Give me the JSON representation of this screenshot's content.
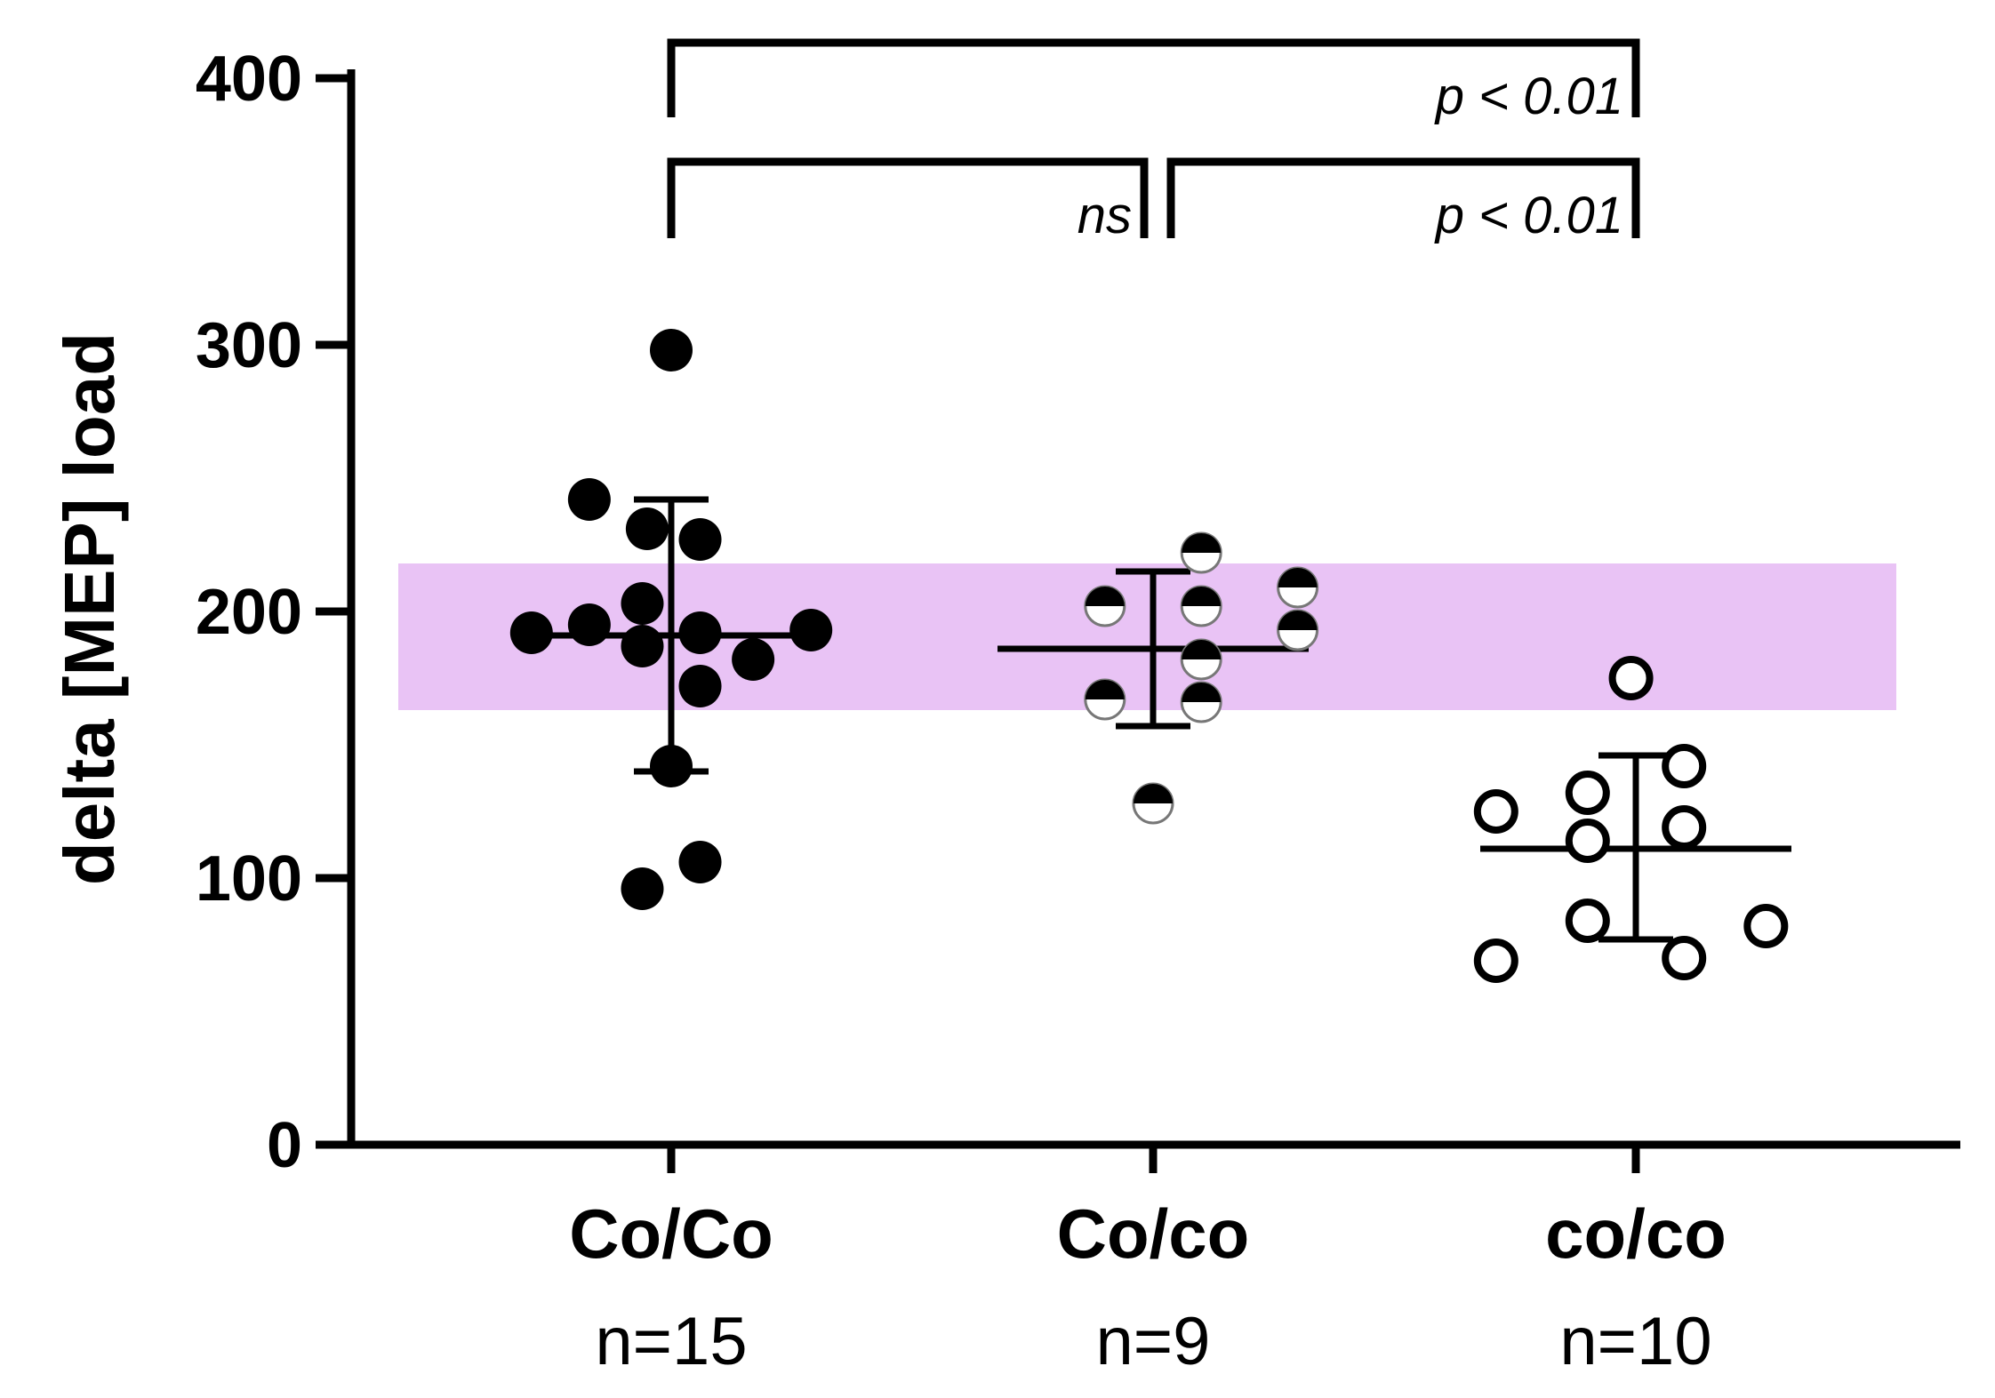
{
  "chart_data": {
    "type": "scatter",
    "ylabel": "delta [MEP] load",
    "ylim": [
      0,
      400
    ],
    "yticks": [
      0,
      100,
      200,
      300,
      400
    ],
    "categories": [
      "Co/Co",
      "Co/co",
      "co/co"
    ],
    "sample_sizes": [
      "n=15",
      "n=9",
      "n=10"
    ],
    "shaded_band": {
      "y_min": 163,
      "y_max": 218,
      "color": "#e9c3f5"
    },
    "groups": [
      {
        "category": "Co/Co",
        "marker": "filled",
        "mean": 191,
        "sd_upper": 242,
        "sd_lower": 140,
        "points": [
          {
            "offset": 0,
            "y": 298
          },
          {
            "offset": -0.17,
            "y": 242
          },
          {
            "offset": -0.05,
            "y": 231
          },
          {
            "offset": 0.06,
            "y": 227
          },
          {
            "offset": -0.06,
            "y": 203
          },
          {
            "offset": -0.29,
            "y": 192
          },
          {
            "offset": -0.17,
            "y": 195
          },
          {
            "offset": -0.06,
            "y": 187
          },
          {
            "offset": 0.06,
            "y": 192
          },
          {
            "offset": 0.29,
            "y": 193
          },
          {
            "offset": 0.17,
            "y": 182
          },
          {
            "offset": 0.06,
            "y": 172
          },
          {
            "offset": 0,
            "y": 142
          },
          {
            "offset": 0.06,
            "y": 106
          },
          {
            "offset": -0.06,
            "y": 96
          }
        ]
      },
      {
        "category": "Co/co",
        "marker": "half",
        "mean": 186,
        "sd_upper": 215,
        "sd_lower": 157,
        "points": [
          {
            "offset": 0.1,
            "y": 222
          },
          {
            "offset": 0.3,
            "y": 209
          },
          {
            "offset": -0.1,
            "y": 202
          },
          {
            "offset": 0.1,
            "y": 202
          },
          {
            "offset": 0.3,
            "y": 193
          },
          {
            "offset": 0.1,
            "y": 182
          },
          {
            "offset": -0.1,
            "y": 167
          },
          {
            "offset": 0.1,
            "y": 166
          },
          {
            "offset": 0,
            "y": 128
          }
        ]
      },
      {
        "category": "co/co",
        "marker": "open",
        "mean": 111,
        "sd_upper": 146,
        "sd_lower": 77,
        "points": [
          {
            "offset": -0.01,
            "y": 175
          },
          {
            "offset": 0.1,
            "y": 142
          },
          {
            "offset": -0.1,
            "y": 132
          },
          {
            "offset": -0.29,
            "y": 125
          },
          {
            "offset": 0.1,
            "y": 119
          },
          {
            "offset": -0.1,
            "y": 114
          },
          {
            "offset": -0.1,
            "y": 84
          },
          {
            "offset": 0.27,
            "y": 82
          },
          {
            "offset": -0.29,
            "y": 69
          },
          {
            "offset": 0.1,
            "y": 70
          }
        ]
      }
    ],
    "comparisons": [
      {
        "from": "Co/Co",
        "to": "co/co",
        "label": "p < 0.01",
        "level": 2
      },
      {
        "from": "Co/Co",
        "to": "Co/co",
        "label": "ns",
        "level": 1
      },
      {
        "from": "Co/co",
        "to": "co/co",
        "label": "p < 0.01",
        "level": 1
      }
    ]
  }
}
